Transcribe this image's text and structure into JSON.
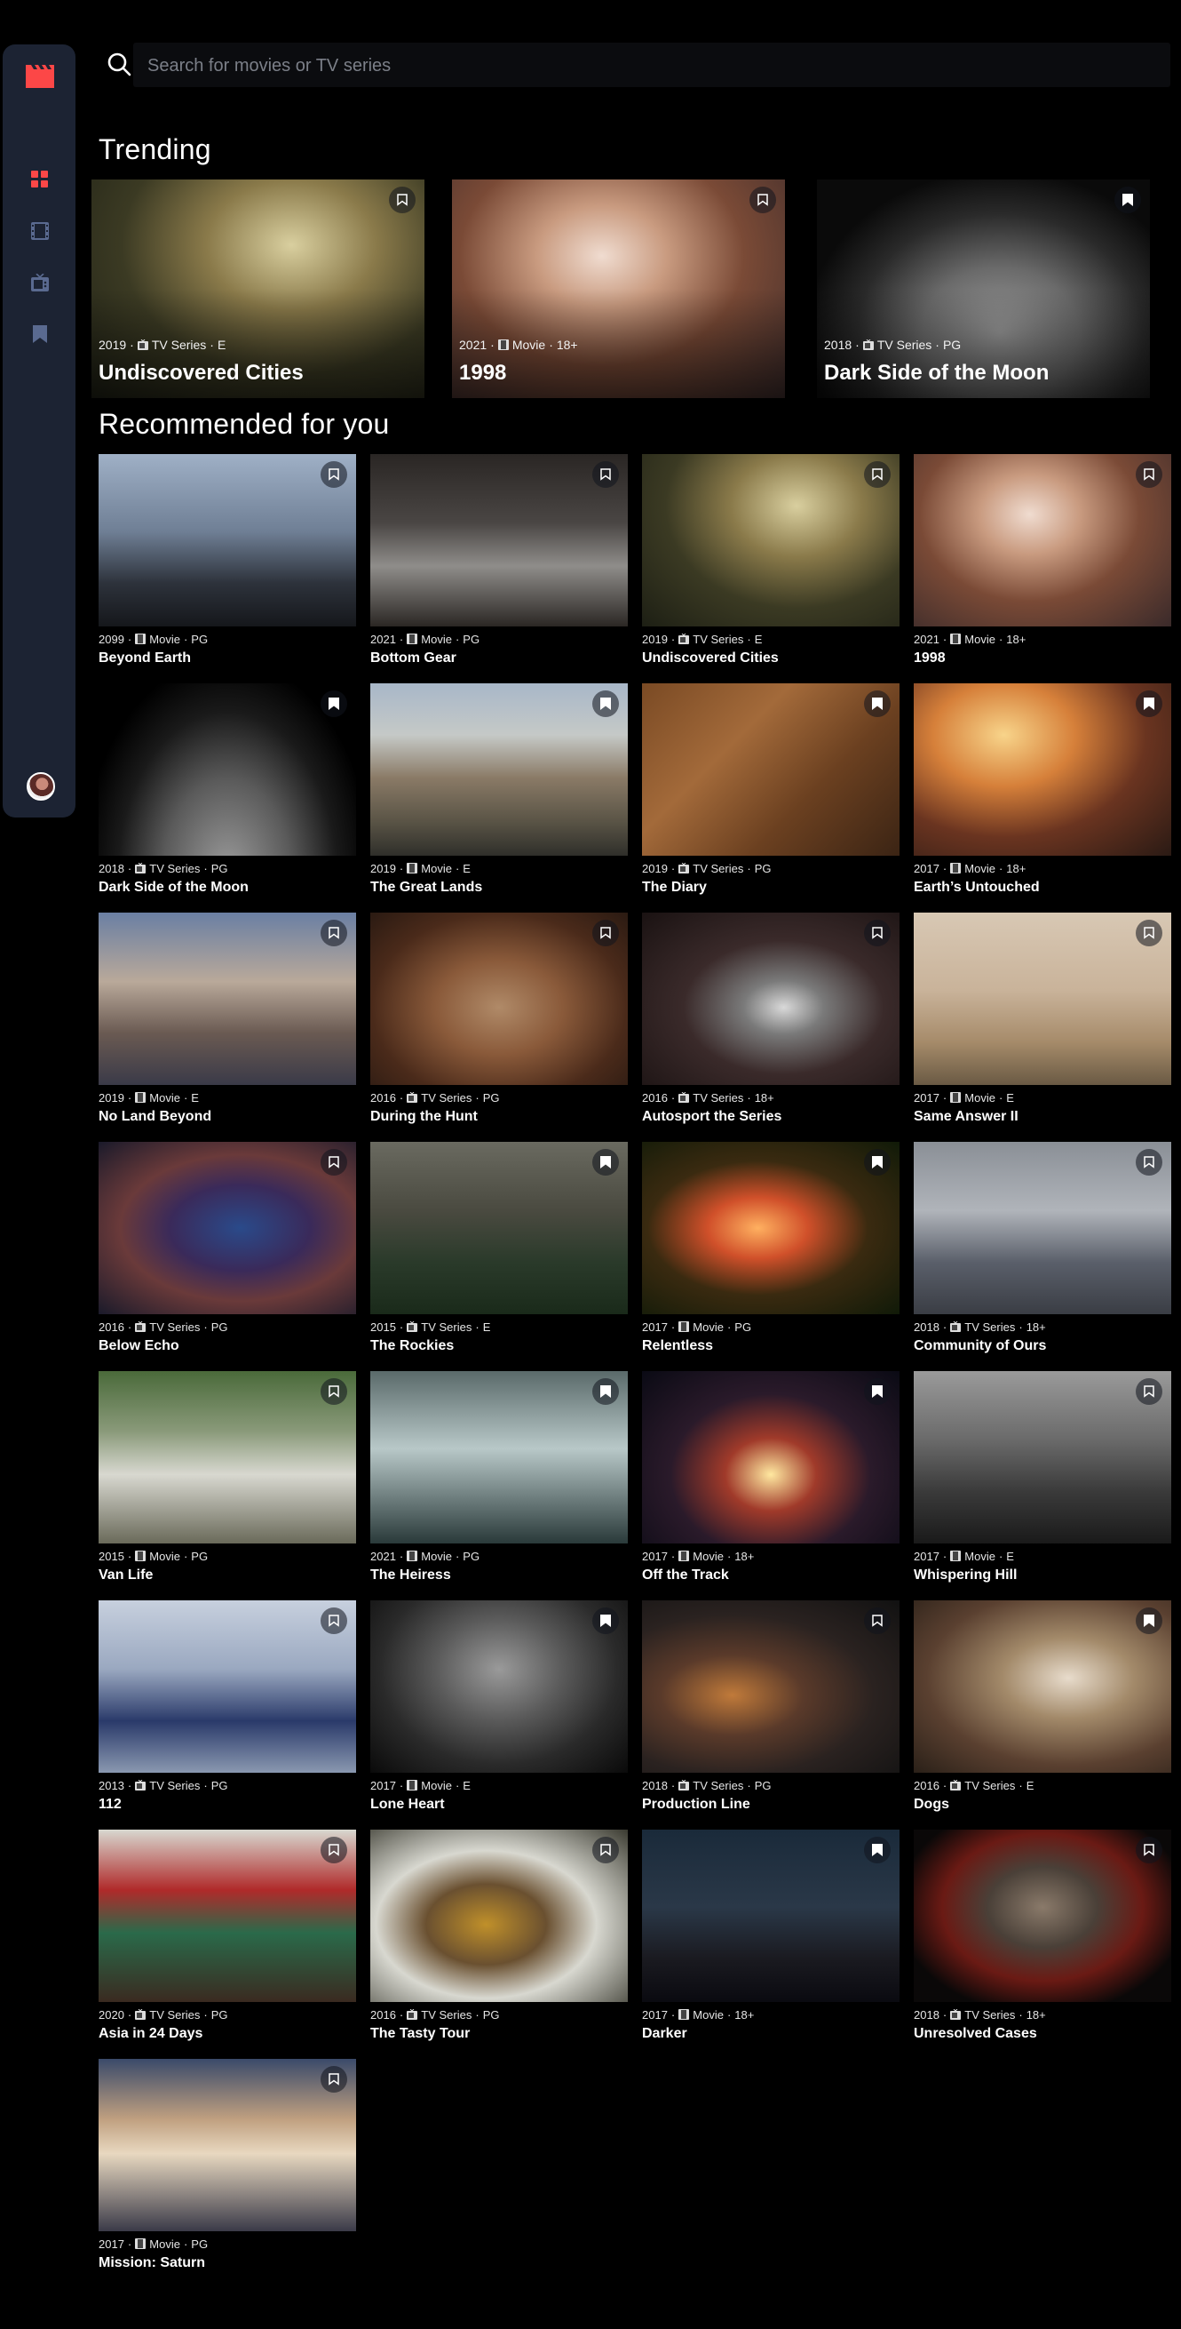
{
  "search": {
    "placeholder": "Search for movies or TV series"
  },
  "sidebar": {
    "items": [
      {
        "icon": "logo-film-icon",
        "color": "#fc4747"
      },
      {
        "icon": "home-grid-icon",
        "color": "#fc4747"
      },
      {
        "icon": "movies-icon",
        "color": "#5a6a90"
      },
      {
        "icon": "tv-series-icon",
        "color": "#5a6a90"
      },
      {
        "icon": "bookmark-nav-icon",
        "color": "#5a6a90"
      }
    ]
  },
  "sections": {
    "trending_title": "Trending",
    "recommended_title": "Recommended for you"
  },
  "trending": [
    {
      "year": "2019",
      "category": "TV Series",
      "rating": "E",
      "title": "Undiscovered Cities",
      "bookmarked": false
    },
    {
      "year": "2021",
      "category": "Movie",
      "rating": "18+",
      "title": "1998",
      "bookmarked": false
    },
    {
      "year": "2018",
      "category": "TV Series",
      "rating": "PG",
      "title": "Dark Side of the Moon",
      "bookmarked": true
    }
  ],
  "recommended": [
    {
      "year": "2099",
      "category": "Movie",
      "rating": "PG",
      "title": "Beyond Earth",
      "bookmarked": false
    },
    {
      "year": "2021",
      "category": "Movie",
      "rating": "PG",
      "title": "Bottom Gear",
      "bookmarked": false
    },
    {
      "year": "2019",
      "category": "TV Series",
      "rating": "E",
      "title": "Undiscovered Cities",
      "bookmarked": false
    },
    {
      "year": "2021",
      "category": "Movie",
      "rating": "18+",
      "title": "1998",
      "bookmarked": false
    },
    {
      "year": "2018",
      "category": "TV Series",
      "rating": "PG",
      "title": "Dark Side of the Moon",
      "bookmarked": true
    },
    {
      "year": "2019",
      "category": "Movie",
      "rating": "E",
      "title": "The Great Lands",
      "bookmarked": true
    },
    {
      "year": "2019",
      "category": "TV Series",
      "rating": "PG",
      "title": "The Diary",
      "bookmarked": true
    },
    {
      "year": "2017",
      "category": "Movie",
      "rating": "18+",
      "title": "Earth’s Untouched",
      "bookmarked": true
    },
    {
      "year": "2019",
      "category": "Movie",
      "rating": "E",
      "title": "No Land Beyond",
      "bookmarked": false
    },
    {
      "year": "2016",
      "category": "TV Series",
      "rating": "PG",
      "title": "During the Hunt",
      "bookmarked": false
    },
    {
      "year": "2016",
      "category": "TV Series",
      "rating": "18+",
      "title": "Autosport the Series",
      "bookmarked": false
    },
    {
      "year": "2017",
      "category": "Movie",
      "rating": "E",
      "title": "Same Answer II",
      "bookmarked": false
    },
    {
      "year": "2016",
      "category": "TV Series",
      "rating": "PG",
      "title": "Below Echo",
      "bookmarked": false
    },
    {
      "year": "2015",
      "category": "TV Series",
      "rating": "E",
      "title": "The Rockies",
      "bookmarked": true
    },
    {
      "year": "2017",
      "category": "Movie",
      "rating": "PG",
      "title": "Relentless",
      "bookmarked": true
    },
    {
      "year": "2018",
      "category": "TV Series",
      "rating": "18+",
      "title": "Community of Ours",
      "bookmarked": false
    },
    {
      "year": "2015",
      "category": "Movie",
      "rating": "PG",
      "title": "Van Life",
      "bookmarked": false
    },
    {
      "year": "2021",
      "category": "Movie",
      "rating": "PG",
      "title": "The Heiress",
      "bookmarked": true
    },
    {
      "year": "2017",
      "category": "Movie",
      "rating": "18+",
      "title": "Off the Track",
      "bookmarked": true
    },
    {
      "year": "2017",
      "category": "Movie",
      "rating": "E",
      "title": "Whispering Hill",
      "bookmarked": false
    },
    {
      "year": "2013",
      "category": "TV Series",
      "rating": "PG",
      "title": "112",
      "bookmarked": false
    },
    {
      "year": "2017",
      "category": "Movie",
      "rating": "E",
      "title": "Lone Heart",
      "bookmarked": true
    },
    {
      "year": "2018",
      "category": "TV Series",
      "rating": "PG",
      "title": "Production Line",
      "bookmarked": false
    },
    {
      "year": "2016",
      "category": "TV Series",
      "rating": "E",
      "title": "Dogs",
      "bookmarked": true
    },
    {
      "year": "2020",
      "category": "TV Series",
      "rating": "PG",
      "title": "Asia in 24 Days",
      "bookmarked": false
    },
    {
      "year": "2016",
      "category": "TV Series",
      "rating": "PG",
      "title": "The Tasty Tour",
      "bookmarked": false
    },
    {
      "year": "2017",
      "category": "Movie",
      "rating": "18+",
      "title": "Darker",
      "bookmarked": true
    },
    {
      "year": "2018",
      "category": "TV Series",
      "rating": "18+",
      "title": "Unresolved Cases",
      "bookmarked": false
    },
    {
      "year": "2017",
      "category": "Movie",
      "rating": "PG",
      "title": "Mission: Saturn",
      "bookmarked": false
    }
  ]
}
